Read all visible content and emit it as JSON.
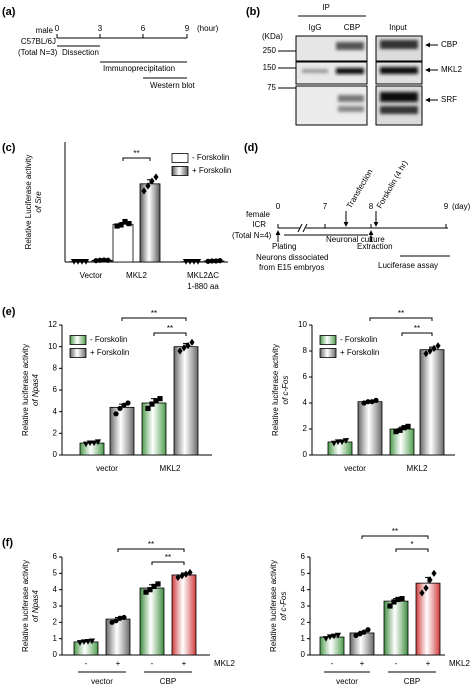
{
  "panel_labels": [
    "(a)",
    "(b)",
    "(c)",
    "(d)",
    "(e)",
    "(f)"
  ],
  "timeline_a": {
    "subject": [
      "male",
      "C57BL/6J",
      "(Total N=3)"
    ],
    "ticks": [
      "0",
      "3",
      "6",
      "9"
    ],
    "unit": "(hour)",
    "steps": [
      "Dissection",
      "Immunoprecipitation",
      "Western blot"
    ]
  },
  "blot_b": {
    "ip": "IP",
    "lanes": [
      "IgG",
      "CBP",
      "Input"
    ],
    "kda": "(KDa)",
    "markers": [
      "250",
      "150",
      "75"
    ],
    "proteins": [
      "CBP",
      "MKL2",
      "SRF"
    ]
  },
  "timeline_d": {
    "subject": [
      "female",
      "ICR",
      "(Total N=4)"
    ],
    "ticks": [
      "0",
      "7",
      "8",
      "9"
    ],
    "unit": "(day)",
    "events_above": [
      "Transfection",
      "Forskolin (4 hr)"
    ],
    "plating": "Plating",
    "culture": "Neuronal culture",
    "extraction": "Extraction",
    "note": [
      "Neurons dissociated",
      "from E15 embryos"
    ],
    "assay": "Luciferase assay"
  },
  "chart_data": [
    {
      "type": "bar",
      "ylabel": "Relative Luciferase activity",
      "ylabel_2": "of Sre",
      "categories": [
        "Vector",
        "MKL2",
        "MKL2ΔC"
      ],
      "category_notes": [
        null,
        null,
        "1-880 aa"
      ],
      "ylim": [
        0,
        350
      ],
      "series": [
        {
          "name": "- Forskolin",
          "color": "#ffffff",
          "values": [
            1,
            110,
            1
          ],
          "errors": [
            0.5,
            5,
            0.5
          ],
          "points": [
            [
              1,
              1,
              1,
              1
            ],
            [
              105,
              108,
              118,
              112
            ],
            [
              1,
              1,
              1,
              1
            ]
          ]
        },
        {
          "name": "+ Forskolin",
          "color": "#555555",
          "values": [
            5,
            228,
            3
          ],
          "errors": [
            1,
            12,
            1
          ],
          "points": [
            [
              4,
              5,
              6,
              5
            ],
            [
              207,
              222,
              236,
              248
            ],
            [
              2,
              3,
              3,
              4
            ]
          ]
        }
      ],
      "annotations": [
        "**"
      ]
    },
    {
      "type": "bar",
      "ylabel": "Relative luciferase activity",
      "ylabel_2": "of Npas4",
      "categories": [
        "vector",
        "MKL2"
      ],
      "ylim": [
        0,
        12
      ],
      "yticks": [
        0,
        2,
        4,
        6,
        8,
        10,
        12
      ],
      "series": [
        {
          "name": "- Forskolin",
          "color": "#4a9a4a",
          "values": [
            1.1,
            4.8
          ],
          "errors": [
            0.1,
            0.4
          ],
          "points": [
            [
              1.0,
              1.1,
              1.1,
              1.2
            ],
            [
              4.3,
              4.7,
              5.0,
              5.2
            ]
          ]
        },
        {
          "name": "+ Forskolin",
          "color": "#666666",
          "values": [
            4.4,
            10.0
          ],
          "errors": [
            0.3,
            0.3
          ],
          "points": [
            [
              3.8,
              4.3,
              4.6,
              4.8
            ],
            [
              9.6,
              9.9,
              10.1,
              10.4
            ]
          ]
        }
      ],
      "annotations": [
        "**",
        "**"
      ]
    },
    {
      "type": "bar",
      "ylabel": "Relative luciferase activity",
      "ylabel_2": "of c-Fos",
      "categories": [
        "vector",
        "MKL2"
      ],
      "ylim": [
        0,
        10
      ],
      "yticks": [
        0,
        2,
        4,
        6,
        8,
        10
      ],
      "series": [
        {
          "name": "- Forskolin",
          "color": "#4a9a4a",
          "values": [
            1.0,
            2.0
          ],
          "errors": [
            0.1,
            0.15
          ],
          "points": [
            [
              0.9,
              1.0,
              1.0,
              1.1
            ],
            [
              1.8,
              1.9,
              2.1,
              2.2
            ]
          ]
        },
        {
          "name": "+ Forskolin",
          "color": "#666666",
          "values": [
            4.1,
            8.1
          ],
          "errors": [
            0.05,
            0.2
          ],
          "points": [
            [
              4.0,
              4.1,
              4.1,
              4.2
            ],
            [
              7.8,
              8.0,
              8.2,
              8.4
            ]
          ]
        }
      ],
      "annotations": [
        "**",
        "**"
      ]
    },
    {
      "type": "bar",
      "ylabel": "Relative luciferase activity",
      "ylabel_2": "of Npas4",
      "categories": [
        "-",
        "+",
        "-",
        "+"
      ],
      "groups": [
        "vector",
        "CBP"
      ],
      "x_label": "MKL2",
      "ylim": [
        0,
        6
      ],
      "yticks": [
        0,
        1,
        2,
        3,
        4,
        5,
        6
      ],
      "colors": [
        "#4a9a4a",
        "#666666",
        "#3d8a3d",
        "#d03a3a"
      ],
      "values": [
        0.8,
        2.2,
        4.1,
        4.9
      ],
      "errors": [
        0.05,
        0.1,
        0.2,
        0.12
      ],
      "points": [
        [
          0.75,
          0.8,
          0.82,
          0.85
        ],
        [
          2.0,
          2.1,
          2.25,
          2.3
        ],
        [
          3.85,
          4.0,
          4.2,
          4.35
        ],
        [
          4.75,
          4.85,
          4.95,
          5.05
        ]
      ],
      "annotations": [
        "**",
        "**"
      ]
    },
    {
      "type": "bar",
      "ylabel": "Relative luciferase activity",
      "ylabel_2": "of c-Fos",
      "categories": [
        "-",
        "+",
        "-",
        "+"
      ],
      "groups": [
        "vector",
        "CBP"
      ],
      "x_label": "MKL2",
      "ylim": [
        0,
        6
      ],
      "yticks": [
        0,
        1,
        2,
        3,
        4,
        5,
        6
      ],
      "colors": [
        "#4a9a4a",
        "#666666",
        "#3d8a3d",
        "#d03a3a"
      ],
      "values": [
        1.1,
        1.35,
        3.3,
        4.4
      ],
      "errors": [
        0.08,
        0.1,
        0.15,
        0.35
      ],
      "points": [
        [
          1.0,
          1.1,
          1.15,
          1.2
        ],
        [
          1.2,
          1.3,
          1.4,
          1.55
        ],
        [
          3.0,
          3.25,
          3.4,
          3.45
        ],
        [
          3.8,
          4.1,
          4.6,
          5.0
        ]
      ],
      "annotations": [
        "**",
        "*"
      ]
    }
  ]
}
